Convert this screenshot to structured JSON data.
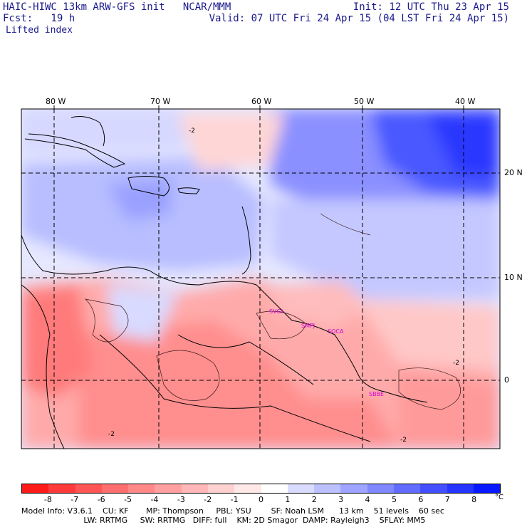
{
  "header": {
    "title": "HAIC-HIWC 13km ARW-GFS init   NCAR/MMM",
    "fcst": "Fcst:   19 h",
    "field": "Lifted index",
    "init": "Init: 12 UTC Thu 23 Apr 15",
    "valid": "Valid: 07 UTC Fri 24 Apr 15 (04 LST Fri 24 Apr 15)"
  },
  "map": {
    "lon_labels": [
      "80 W",
      "70 W",
      "60 W",
      "50 W",
      "40 W"
    ],
    "lat_labels": [
      "20 N",
      "10 N",
      "0"
    ],
    "stations": [
      "SVGI",
      "SMPJ",
      "SOCA",
      "SBBE"
    ],
    "contour_labels": [
      "-2",
      "-2",
      "-2",
      "-2"
    ],
    "colors": {
      "station": "#d400d4",
      "grid": "#000000"
    }
  },
  "colorbar": {
    "labels": [
      "-8",
      "-7",
      "-6",
      "-5",
      "-4",
      "-3",
      "-2",
      "-1",
      "0",
      "1",
      "2",
      "3",
      "4",
      "5",
      "6",
      "7",
      "8"
    ],
    "unit": "°C",
    "colors": [
      "#ff1a1a",
      "#ff3a3a",
      "#ff5555",
      "#ff6f6f",
      "#ff8888",
      "#ffa0a0",
      "#ffb8b8",
      "#ffd0d0",
      "#ffe8e8",
      "#ffffff",
      "#dadcff",
      "#bcc0ff",
      "#9ea4ff",
      "#8088ff",
      "#626cff",
      "#4450ff",
      "#2634ff",
      "#0818ff"
    ]
  },
  "footer": {
    "line1": "Model Info: V3.6.1    CU: KF       MP: Thompson     PBL: YSU        SF: Noah LSM      13 km    51 levels    60 sec",
    "line2": "                         LW: RRTMG     SW: RRTMG   DIFF: full    KM: 2D Smagor  DAMP: Rayleigh3    SFLAY: MM5"
  }
}
